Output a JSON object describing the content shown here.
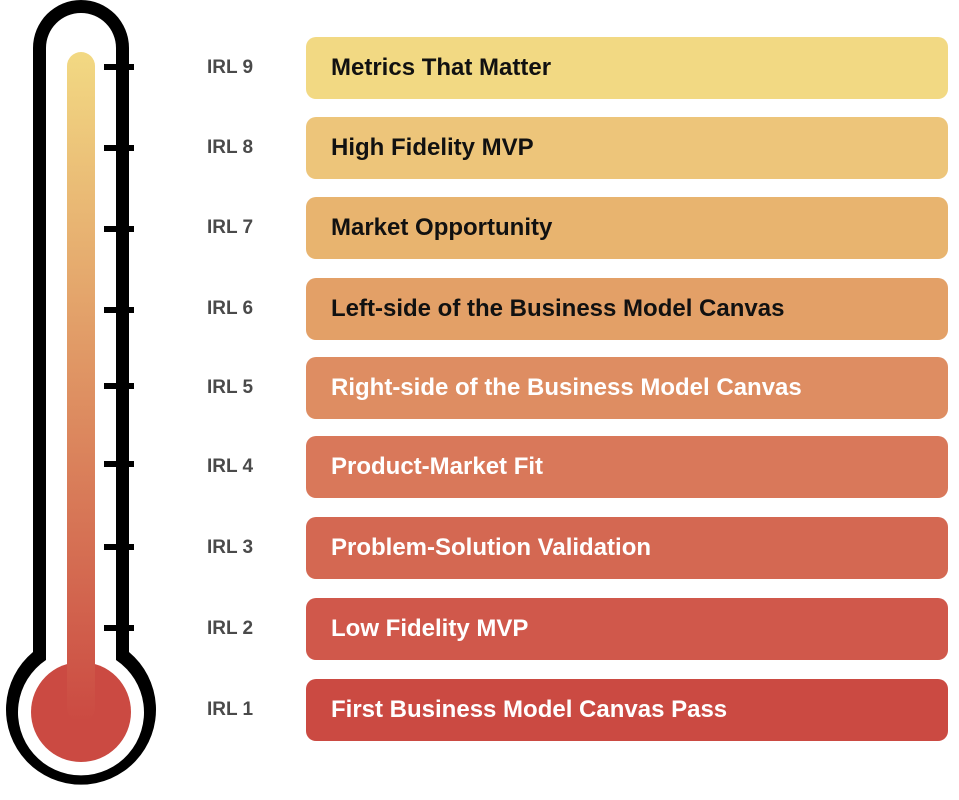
{
  "levels": [
    {
      "level": "IRL 9",
      "title": "Metrics That Matter",
      "color": "#F2D983",
      "text_color": "#111111"
    },
    {
      "level": "IRL 8",
      "title": "High Fidelity MVP",
      "color": "#EDC57A",
      "text_color": "#111111"
    },
    {
      "level": "IRL 7",
      "title": "Market Opportunity",
      "color": "#E8B46F",
      "text_color": "#111111"
    },
    {
      "level": "IRL 6",
      "title": "Left-side of the Business Model Canvas",
      "color": "#E3A067",
      "text_color": "#111111"
    },
    {
      "level": "IRL 5",
      "title": "Right-side of the Business Model Canvas",
      "color": "#DE8D62",
      "text_color": "#ffffff"
    },
    {
      "level": "IRL 4",
      "title": "Product-Market Fit",
      "color": "#D9785A",
      "text_color": "#ffffff"
    },
    {
      "level": "IRL 3",
      "title": "Problem-Solution Validation",
      "color": "#D46852",
      "text_color": "#ffffff"
    },
    {
      "level": "IRL 2",
      "title": "Low Fidelity MVP",
      "color": "#D0584B",
      "text_color": "#ffffff"
    },
    {
      "level": "IRL 1",
      "title": "First Business Model Canvas Pass",
      "color": "#CB4A42",
      "text_color": "#ffffff"
    }
  ],
  "thermometer": {
    "fill_top_color": "#F2D983",
    "fill_bottom_color": "#CB4A42",
    "outline_color": "#000000"
  }
}
